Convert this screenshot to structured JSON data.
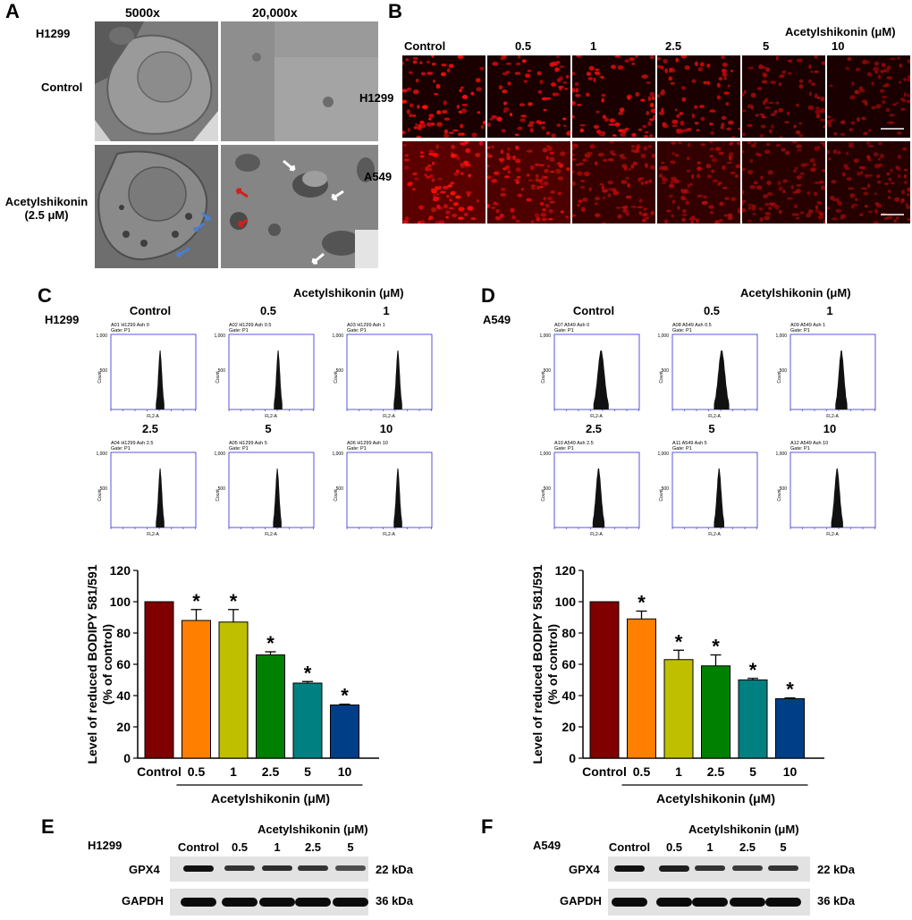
{
  "panels": {
    "A": "A",
    "B": "B",
    "C": "C",
    "D": "D",
    "E": "E",
    "F": "F"
  },
  "panelA": {
    "cell": "H1299",
    "col1": "5000x",
    "col2": "20,000x",
    "row1": "Control",
    "row2_line1": "Acetylshikonin",
    "row2_line2": "(2.5 μM)"
  },
  "panelB": {
    "treatment": "Acetylshikonin (μM)",
    "columns": [
      "Control",
      "0.5",
      "1",
      "2.5",
      "5",
      "10"
    ],
    "rows": [
      "H1299",
      "A549"
    ]
  },
  "panelC": {
    "cell": "H1299",
    "treatment": "Acetylshikonin (μM)",
    "conds": [
      "Control",
      "0.5",
      "1",
      "2.5",
      "5",
      "10"
    ],
    "sample_ids": [
      "A01 H1299 Ash 0",
      "A02 H1299 Ash 0.5",
      "A03 H1299 Ash 1",
      "A04 H1299 Ash 2.5",
      "A05 H1299 Ash 5",
      "A06 H1299 Ash 10"
    ],
    "gate": "Gate: P1",
    "xlab": "FL2-A",
    "ylab": "Count",
    "ytop": "1,000",
    "ymid": "500"
  },
  "panelD": {
    "cell": "A549",
    "treatment": "Acetylshikonin (μM)",
    "conds": [
      "Control",
      "0.5",
      "1",
      "2.5",
      "5",
      "10"
    ],
    "sample_ids": [
      "A07 A549 Ash 0",
      "A08 A549 Ash 0.5",
      "A09 A549 Ash 1",
      "A10 A549 Ash 2.5",
      "A11 A549 Ash 5",
      "A12 A549 Ash 10"
    ],
    "gate": "Gate: P1",
    "xlab": "FL2-A",
    "ylab": "Count",
    "ytop": "1,000",
    "ymid": "500"
  },
  "chart_data": [
    {
      "type": "bar",
      "panel": "C",
      "categories": [
        "Control",
        "0.5",
        "1",
        "2.5",
        "5",
        "10"
      ],
      "values": [
        100,
        88,
        87,
        66,
        48,
        34
      ],
      "errors": [
        0,
        7,
        8,
        2,
        1,
        0.5
      ],
      "significant": [
        false,
        true,
        true,
        true,
        true,
        true
      ],
      "sig_marker": "*",
      "colors": [
        "#800000",
        "#ff7f00",
        "#bfbf00",
        "#008000",
        "#008080",
        "#003f87"
      ],
      "ylabel": "Level of reduced BODIPY 581/591 (% of control)",
      "ylabel_l1": "Level of reduced BODIPY 581/591",
      "ylabel_l2": "(% of control)",
      "xlabel": "Acetylshikonin (μM)",
      "ylim": [
        0,
        120
      ],
      "yticks": [
        0,
        20,
        40,
        60,
        80,
        100,
        120
      ]
    },
    {
      "type": "bar",
      "panel": "D",
      "categories": [
        "Control",
        "0.5",
        "1",
        "2.5",
        "5",
        "10"
      ],
      "values": [
        100,
        89,
        63,
        59,
        50,
        38
      ],
      "errors": [
        0,
        5,
        6,
        7,
        1,
        0.5
      ],
      "significant": [
        false,
        true,
        true,
        true,
        true,
        true
      ],
      "sig_marker": "*",
      "colors": [
        "#800000",
        "#ff7f00",
        "#bfbf00",
        "#008000",
        "#008080",
        "#003f87"
      ],
      "ylabel": "Level of reduced BODIPY 581/591 (% of control)",
      "ylabel_l1": "Level of reduced BODIPY 581/591",
      "ylabel_l2": "(% of control)",
      "xlabel": "Acetylshikonin (μM)",
      "ylim": [
        0,
        120
      ],
      "yticks": [
        0,
        20,
        40,
        60,
        80,
        100,
        120
      ]
    }
  ],
  "panelE": {
    "cell": "H1299",
    "treatment": "Acetylshikonin (μM)",
    "lanes": [
      "Control",
      "0.5",
      "1",
      "2.5",
      "5"
    ],
    "proteins": [
      "GPX4",
      "GAPDH"
    ],
    "sizes": [
      "22 kDa",
      "36 kDa"
    ],
    "gpx4_intensity": [
      1.0,
      0.75,
      0.8,
      0.75,
      0.55
    ]
  },
  "panelF": {
    "cell": "A549",
    "treatment": "Acetylshikonin (μM)",
    "lanes": [
      "Control",
      "0.5",
      "1",
      "2.5",
      "5"
    ],
    "proteins": [
      "GPX4",
      "GAPDH"
    ],
    "sizes": [
      "22 kDa",
      "36 kDa"
    ],
    "gpx4_intensity": [
      1.0,
      0.9,
      0.75,
      0.7,
      0.75
    ]
  }
}
